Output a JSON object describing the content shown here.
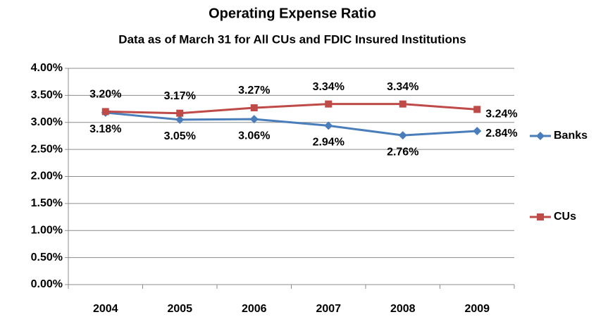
{
  "chart_data": {
    "type": "line",
    "title": "Operating Expense Ratio",
    "subtitle": "Data as of March 31 for All CUs and FDIC Insured Institutions",
    "categories": [
      "2004",
      "2005",
      "2006",
      "2007",
      "2008",
      "2009"
    ],
    "series": [
      {
        "name": "Banks",
        "color": "#4a7ebb",
        "marker": "diamond",
        "values": [
          3.18,
          3.05,
          3.06,
          2.94,
          2.76,
          2.84
        ],
        "value_labels": [
          "3.18%",
          "3.05%",
          "3.06%",
          "2.94%",
          "2.76%",
          "2.84%"
        ]
      },
      {
        "name": "CUs",
        "color": "#be4b48",
        "marker": "square",
        "values": [
          3.2,
          3.17,
          3.27,
          3.34,
          3.34,
          3.24
        ],
        "value_labels": [
          "3.20%",
          "3.17%",
          "3.27%",
          "3.34%",
          "3.34%",
          "3.24%"
        ]
      }
    ],
    "ylim": [
      0,
      4
    ],
    "yticks": [
      {
        "value": 0,
        "label": "0.00%"
      },
      {
        "value": 0.5,
        "label": "0.50%"
      },
      {
        "value": 1,
        "label": "1.00%"
      },
      {
        "value": 1.5,
        "label": "1.50%"
      },
      {
        "value": 2,
        "label": "2.00%"
      },
      {
        "value": 2.5,
        "label": "2.50%"
      },
      {
        "value": 3,
        "label": "3.00%"
      },
      {
        "value": 3.5,
        "label": "3.50%"
      },
      {
        "value": 4,
        "label": "4.00%"
      }
    ],
    "grid": true,
    "legend": "right"
  }
}
